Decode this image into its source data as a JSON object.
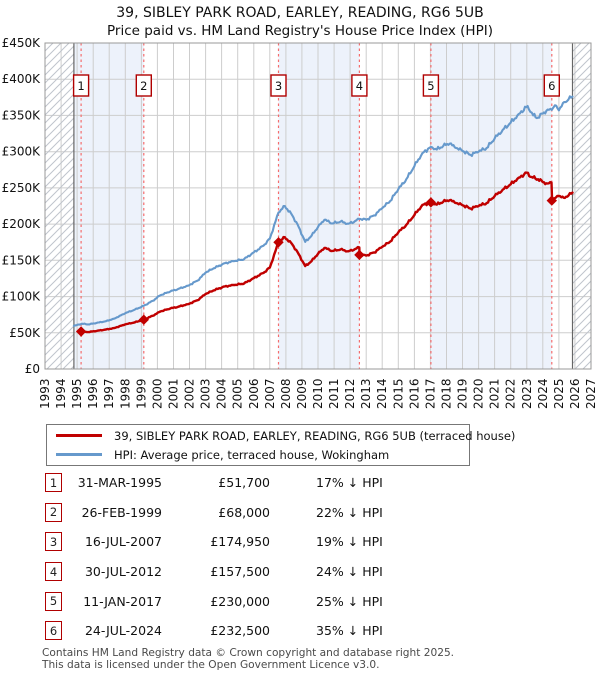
{
  "title": "39, SIBLEY PARK ROAD, EARLEY, READING, RG6 5UB",
  "subtitle": "Price paid vs. HM Land Registry's House Price Index (HPI)",
  "legend": [
    {
      "label": "39, SIBLEY PARK ROAD, EARLEY, READING, RG6 5UB (terraced house)",
      "color": "#c00000"
    },
    {
      "label": "HPI: Average price, terraced house, Wokingham",
      "color": "#6699cc"
    }
  ],
  "footer": {
    "line1": "Contains HM Land Registry data © Crown copyright and database right 2025.",
    "line2": "This data is licensed under the Open Government Licence v3.0."
  },
  "chart_data": {
    "type": "line",
    "title": "Price paid vs. HM Land Registry's House Price Index (HPI)",
    "xlabel": "",
    "ylabel": "",
    "x_axis": {
      "min": 1993,
      "max": 2027,
      "ticks": [
        1993,
        1994,
        1995,
        1996,
        1997,
        1998,
        1999,
        2000,
        2001,
        2002,
        2003,
        2004,
        2005,
        2006,
        2007,
        2008,
        2009,
        2010,
        2011,
        2012,
        2013,
        2014,
        2015,
        2016,
        2017,
        2018,
        2019,
        2020,
        2021,
        2022,
        2023,
        2024,
        2025,
        2026,
        2027
      ]
    },
    "y_axis": {
      "min": 0,
      "max": 450000,
      "tick_step": 50000,
      "tick_labels": [
        "£0",
        "£50K",
        "£100K",
        "£150K",
        "£200K",
        "£250K",
        "£300K",
        "£350K",
        "£400K",
        "£450K"
      ]
    },
    "hpi_span": {
      "start": 1994.8,
      "end": 2025.85
    },
    "bands": [
      [
        1994.8,
        1999.15
      ],
      [
        2007.54,
        2012.58
      ],
      [
        2017.03,
        2024.56
      ]
    ],
    "colors": {
      "property": "#c00000",
      "hpi": "#6699cc",
      "band": "#edf2fb",
      "grid": "#cdcdcd",
      "hatch": "#bfc4cc",
      "sale_line": "#f56c6c",
      "marker_box_border": "#b00000",
      "plot_border": "#999999",
      "data_boundary": "#666666"
    },
    "series": [
      {
        "name": "HPI: Average price, terraced house, Wokingham",
        "color": "#6699cc",
        "points": [
          [
            1994.8,
            59500
          ],
          [
            1995.3,
            62500
          ],
          [
            1995.7,
            61500
          ],
          [
            1996.2,
            63500
          ],
          [
            1996.8,
            66000
          ],
          [
            1997.3,
            69500
          ],
          [
            1998.0,
            77000
          ],
          [
            1998.6,
            82000
          ],
          [
            1999.15,
            87200
          ],
          [
            1999.7,
            94000
          ],
          [
            2000.2,
            102000
          ],
          [
            2000.8,
            107000
          ],
          [
            2001.3,
            110500
          ],
          [
            2001.9,
            115000
          ],
          [
            2002.5,
            122000
          ],
          [
            2003.0,
            133000
          ],
          [
            2003.5,
            139000
          ],
          [
            2004.2,
            146000
          ],
          [
            2004.8,
            149000
          ],
          [
            2005.4,
            151500
          ],
          [
            2006.0,
            161000
          ],
          [
            2006.6,
            170000
          ],
          [
            2007.0,
            180000
          ],
          [
            2007.54,
            216000
          ],
          [
            2007.93,
            225000
          ],
          [
            2008.4,
            212000
          ],
          [
            2008.8,
            196000
          ],
          [
            2009.2,
            175500
          ],
          [
            2009.6,
            184000
          ],
          [
            2010.0,
            196000
          ],
          [
            2010.4,
            206000
          ],
          [
            2010.9,
            201000
          ],
          [
            2011.4,
            203500
          ],
          [
            2011.9,
            200500
          ],
          [
            2012.3,
            204000
          ],
          [
            2012.58,
            207200
          ],
          [
            2013.0,
            206000
          ],
          [
            2013.5,
            212000
          ],
          [
            2014.0,
            222000
          ],
          [
            2014.5,
            232000
          ],
          [
            2015.0,
            248000
          ],
          [
            2015.5,
            262000
          ],
          [
            2016.0,
            280000
          ],
          [
            2016.5,
            298000
          ],
          [
            2017.03,
            306700
          ],
          [
            2017.4,
            303000
          ],
          [
            2017.8,
            308000
          ],
          [
            2018.2,
            311000
          ],
          [
            2018.6,
            305000
          ],
          [
            2019.0,
            301000
          ],
          [
            2019.5,
            295500
          ],
          [
            2020.0,
            300000
          ],
          [
            2020.5,
            305000
          ],
          [
            2021.0,
            318000
          ],
          [
            2021.5,
            330000
          ],
          [
            2022.0,
            340000
          ],
          [
            2022.5,
            352000
          ],
          [
            2023.05,
            363000
          ],
          [
            2023.4,
            350000
          ],
          [
            2023.7,
            347000
          ],
          [
            2024.0,
            352500
          ],
          [
            2024.3,
            358000
          ],
          [
            2024.56,
            357700
          ],
          [
            2024.75,
            364000
          ],
          [
            2025.0,
            357000
          ],
          [
            2025.25,
            367000
          ],
          [
            2025.6,
            372000
          ],
          [
            2025.85,
            376000
          ]
        ]
      },
      {
        "name": "39, SIBLEY PARK ROAD, EARLEY, READING, RG6 5UB (terraced house)",
        "color": "#c00000",
        "points": [
          [
            1995.25,
            51700
          ],
          [
            1995.7,
            51000
          ],
          [
            1996.2,
            52500
          ],
          [
            1996.8,
            54500
          ],
          [
            1997.3,
            56500
          ],
          [
            1998.0,
            61500
          ],
          [
            1998.6,
            64500
          ],
          [
            1999.15,
            68000
          ],
          [
            1999.7,
            73500
          ],
          [
            2000.2,
            79500
          ],
          [
            2000.8,
            83500
          ],
          [
            2001.3,
            86000
          ],
          [
            2001.9,
            89500
          ],
          [
            2002.5,
            95000
          ],
          [
            2003.0,
            103500
          ],
          [
            2003.5,
            108500
          ],
          [
            2004.2,
            114000
          ],
          [
            2004.8,
            116000
          ],
          [
            2005.4,
            118000
          ],
          [
            2006.0,
            125500
          ],
          [
            2006.6,
            132500
          ],
          [
            2007.0,
            140000
          ],
          [
            2007.54,
            174950
          ],
          [
            2007.93,
            182000
          ],
          [
            2008.4,
            172000
          ],
          [
            2008.8,
            158500
          ],
          [
            2009.2,
            142000
          ],
          [
            2009.6,
            149000
          ],
          [
            2010.0,
            159000
          ],
          [
            2010.4,
            167000
          ],
          [
            2010.9,
            163000
          ],
          [
            2011.4,
            165000
          ],
          [
            2011.9,
            162500
          ],
          [
            2012.3,
            165500
          ],
          [
            2012.57,
            167800
          ],
          [
            2012.59,
            157500
          ],
          [
            2013.0,
            156500
          ],
          [
            2013.5,
            161000
          ],
          [
            2014.0,
            168500
          ],
          [
            2014.5,
            176000
          ],
          [
            2015.0,
            188500
          ],
          [
            2015.5,
            199000
          ],
          [
            2016.0,
            212500
          ],
          [
            2016.5,
            226500
          ],
          [
            2017.03,
            230000
          ],
          [
            2017.4,
            227000
          ],
          [
            2017.8,
            231000
          ],
          [
            2018.2,
            233000
          ],
          [
            2018.6,
            229000
          ],
          [
            2019.0,
            226000
          ],
          [
            2019.5,
            221500
          ],
          [
            2020.0,
            225000
          ],
          [
            2020.5,
            229000
          ],
          [
            2021.0,
            238500
          ],
          [
            2021.5,
            247500
          ],
          [
            2022.0,
            255000
          ],
          [
            2022.5,
            264000
          ],
          [
            2023.0,
            271000
          ],
          [
            2023.3,
            265000
          ],
          [
            2023.7,
            262000
          ],
          [
            2024.0,
            258000
          ],
          [
            2024.3,
            256000
          ],
          [
            2024.54,
            257500
          ],
          [
            2024.58,
            232500
          ],
          [
            2024.8,
            236500
          ],
          [
            2025.0,
            239000
          ],
          [
            2025.3,
            236500
          ],
          [
            2025.6,
            239500
          ],
          [
            2025.85,
            243500
          ]
        ]
      }
    ],
    "sales": [
      {
        "n": 1,
        "date": "31-MAR-1995",
        "year": 1995.25,
        "price": 51700,
        "price_label": "£51,700",
        "pct_label": "17% ↓ HPI"
      },
      {
        "n": 2,
        "date": "26-FEB-1999",
        "year": 1999.15,
        "price": 68000,
        "price_label": "£68,000",
        "pct_label": "22% ↓ HPI"
      },
      {
        "n": 3,
        "date": "16-JUL-2007",
        "year": 2007.54,
        "price": 174950,
        "price_label": "£174,950",
        "pct_label": "19% ↓ HPI"
      },
      {
        "n": 4,
        "date": "30-JUL-2012",
        "year": 2012.58,
        "price": 157500,
        "price_label": "£157,500",
        "pct_label": "24% ↓ HPI"
      },
      {
        "n": 5,
        "date": "11-JAN-2017",
        "year": 2017.03,
        "price": 230000,
        "price_label": "£230,000",
        "pct_label": "25% ↓ HPI"
      },
      {
        "n": 6,
        "date": "24-JUL-2024",
        "year": 2024.56,
        "price": 232500,
        "price_label": "£232,500",
        "pct_label": "35% ↓ HPI"
      }
    ]
  }
}
